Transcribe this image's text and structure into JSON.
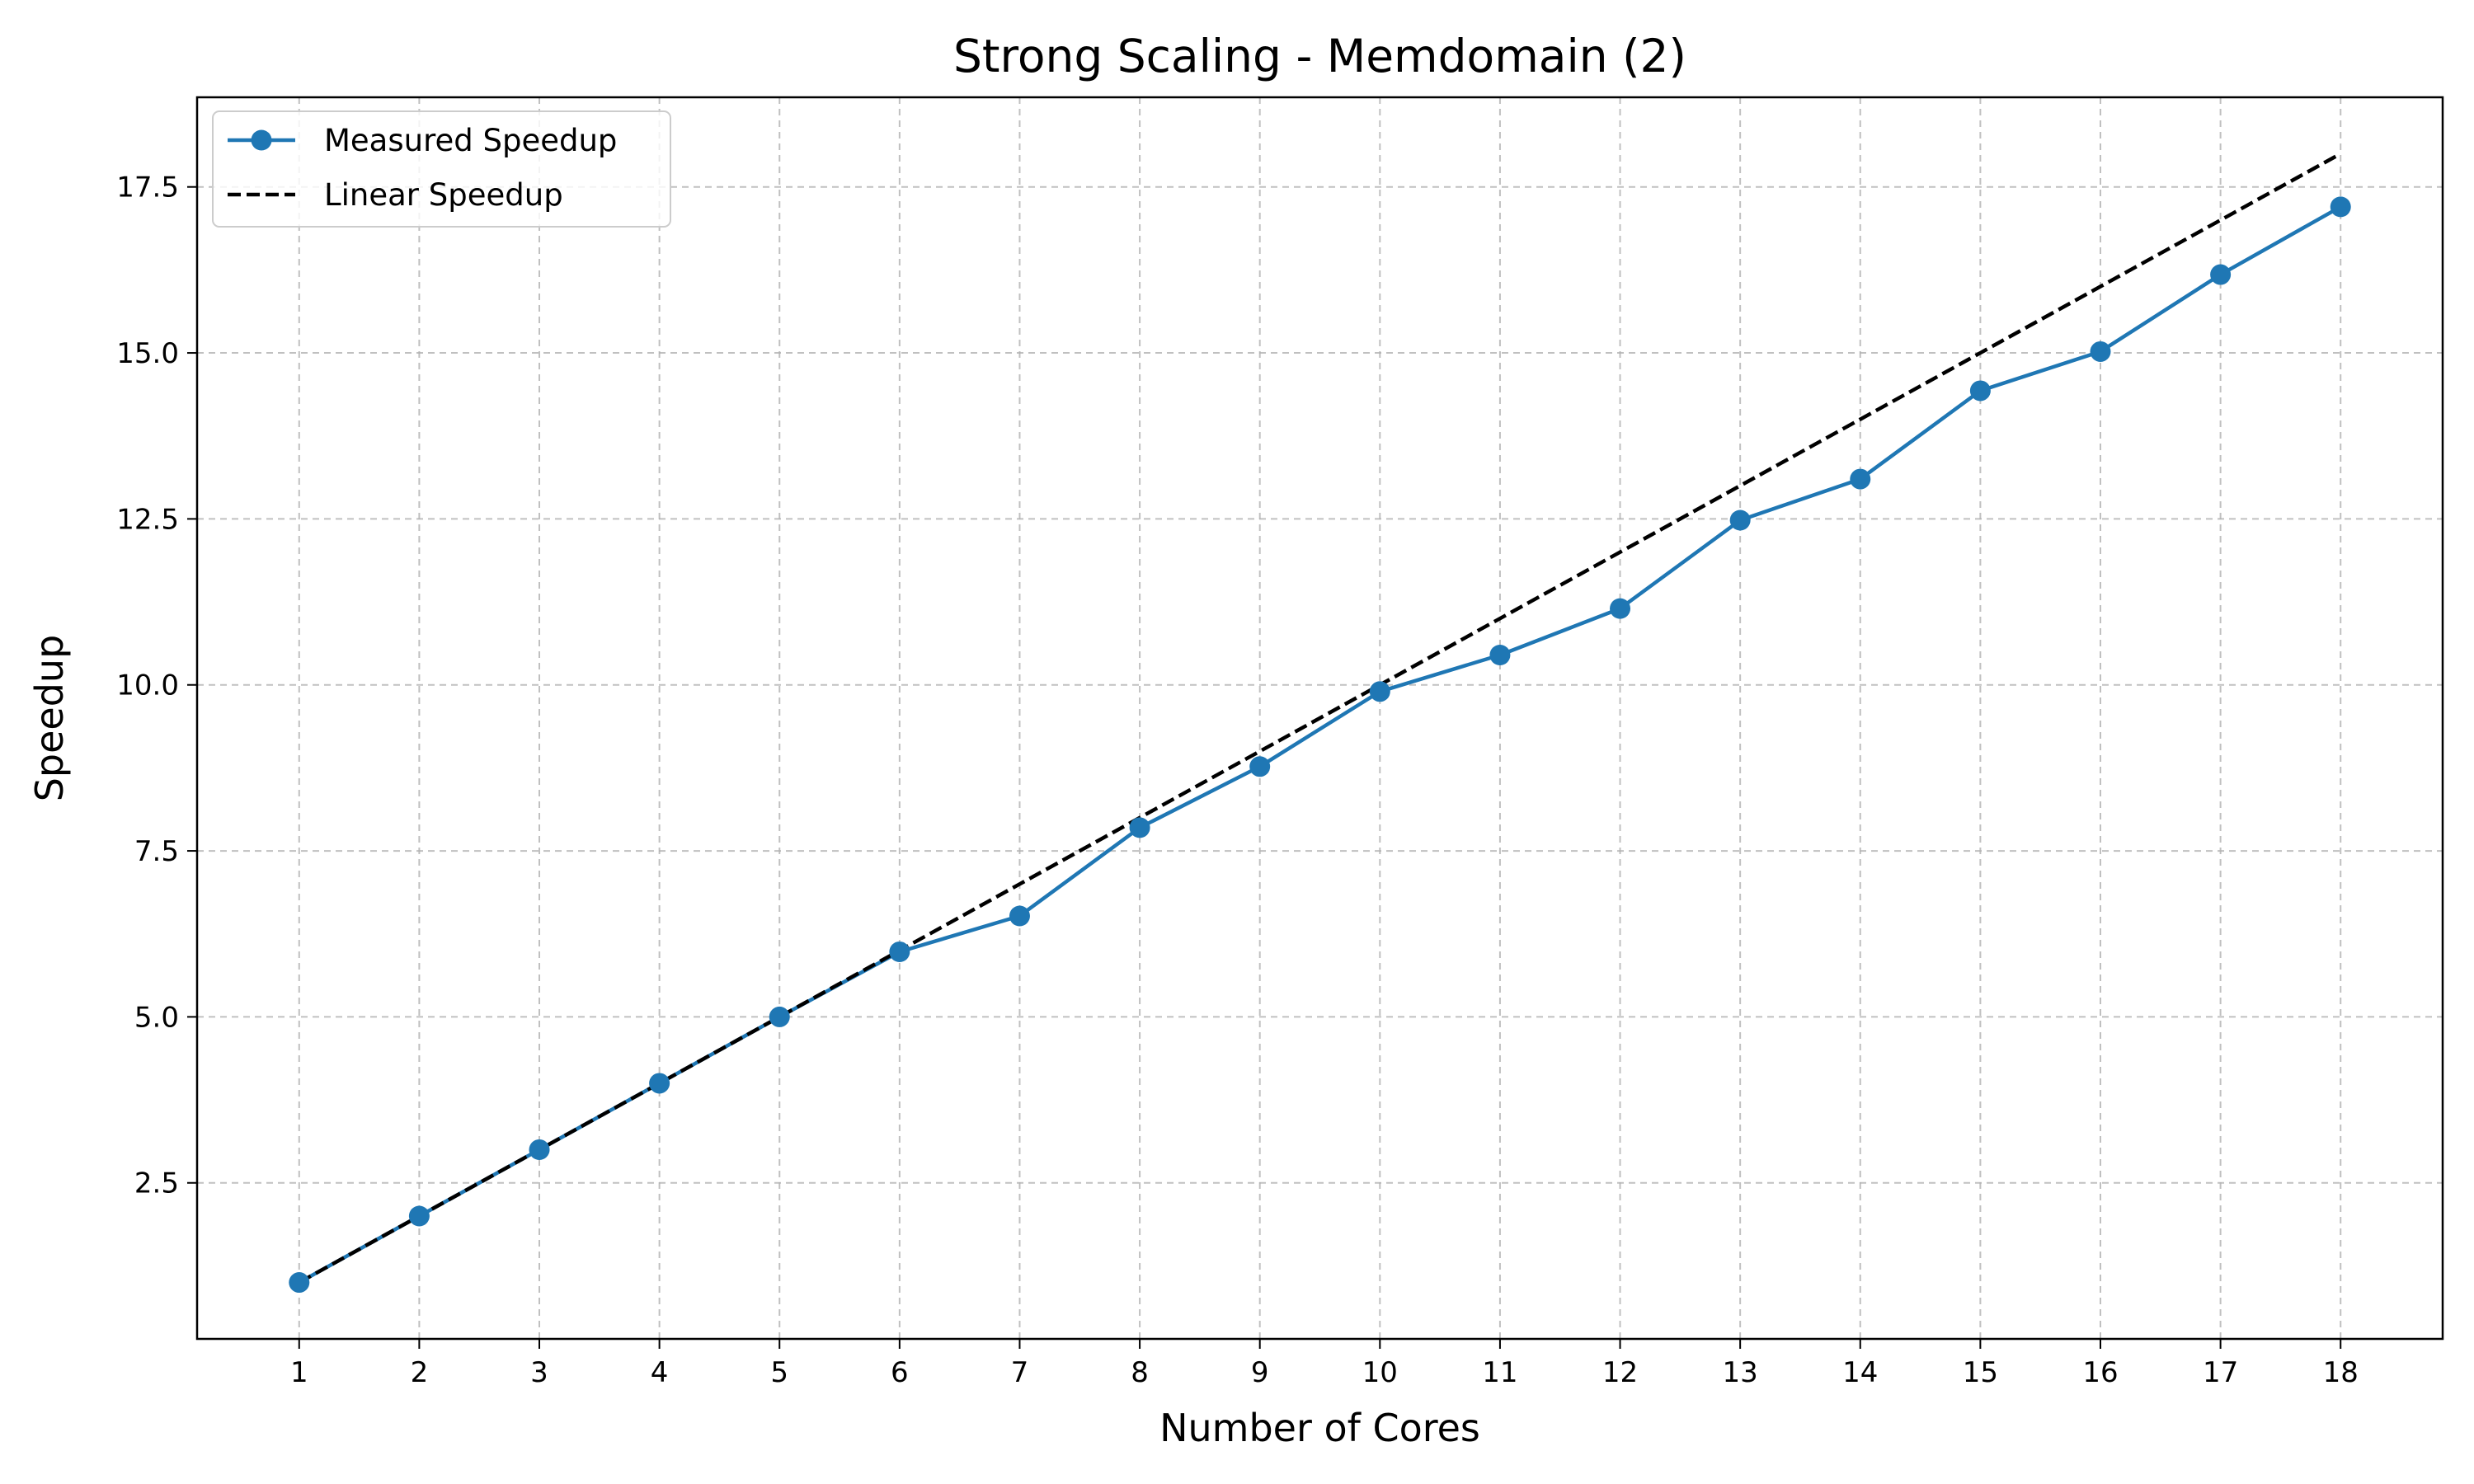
{
  "chart_data": {
    "type": "line",
    "title": "Strong Scaling - Memdomain (2)",
    "xlabel": "Number of Cores",
    "ylabel": "Speedup",
    "x": [
      1,
      2,
      3,
      4,
      5,
      6,
      7,
      8,
      9,
      10,
      11,
      12,
      13,
      14,
      15,
      16,
      17,
      18
    ],
    "xlim": [
      0.15,
      18.85
    ],
    "ylim": [
      0.15,
      18.85
    ],
    "x_ticks": [
      "1",
      "2",
      "3",
      "4",
      "5",
      "6",
      "7",
      "8",
      "9",
      "10",
      "11",
      "12",
      "13",
      "14",
      "15",
      "16",
      "17",
      "18"
    ],
    "y_ticks": [
      2.5,
      5.0,
      7.5,
      10.0,
      12.5,
      15.0,
      17.5
    ],
    "y_tick_labels": [
      "2.5",
      "5.0",
      "7.5",
      "10.0",
      "12.5",
      "15.0",
      "17.5"
    ],
    "grid": true,
    "legend_position": "top-left",
    "series": [
      {
        "name": "Measured Speedup",
        "color": "#1f77b4",
        "style": "solid-with-markers",
        "values": [
          1.0,
          2.0,
          3.0,
          4.0,
          5.0,
          5.98,
          6.52,
          7.85,
          8.77,
          9.9,
          10.45,
          11.15,
          12.48,
          13.1,
          14.43,
          15.02,
          16.18,
          17.2
        ]
      },
      {
        "name": "Linear Speedup",
        "color": "#000000",
        "style": "dashed",
        "values": [
          1,
          2,
          3,
          4,
          5,
          6,
          7,
          8,
          9,
          10,
          11,
          12,
          13,
          14,
          15,
          16,
          17,
          18
        ]
      }
    ]
  }
}
